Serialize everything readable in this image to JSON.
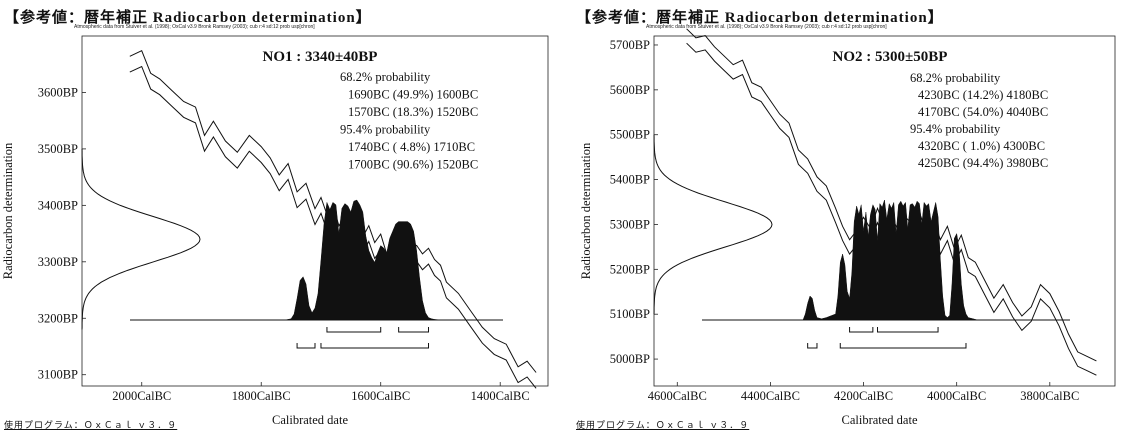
{
  "chart_data": [
    {
      "type": "line",
      "header": "【参考値：暦年補正 Radiocarbon determination】",
      "source_note": "Atmospheric data from Stuiver et al. (1998); OxCal v3.9 Bronk Ramsey (2003); cub r:4 sd:12 prob usp[chron]",
      "program": "使用プログラム：ＯｘＣａｌ ｖ３．９",
      "title": "NO1 : 3340±40BP",
      "ylabel": "Radiocarbon determination",
      "xlabel": "Calibrated date",
      "xlim": [
        -2100,
        -1320
      ],
      "ylim": [
        3080,
        3700
      ],
      "x_ticks": [
        -2000,
        -1800,
        -1600,
        -1400
      ],
      "x_tick_labels": [
        "2000CalBC",
        "1800CalBC",
        "1600CalBC",
        "1400CalBC"
      ],
      "y_ticks": [
        3600,
        3500,
        3400,
        3300,
        3200,
        3100
      ],
      "y_tick_labels": [
        "3600BP",
        "3500BP",
        "3400BP",
        "3300BP",
        "3200BP",
        "3100BP"
      ],
      "measurement": {
        "mean": 3340,
        "sd": 40
      },
      "ranges_text": [
        "68.2% probability",
        "1690BC (49.9%) 1600BC",
        "1570BC (18.3%) 1520BC",
        "95.4% probability",
        "1740BC ( 4.8%) 1710BC",
        "1700BC (90.6%) 1520BC"
      ],
      "ranges_68": [
        [
          -1690,
          -1600
        ],
        [
          -1570,
          -1520
        ]
      ],
      "ranges_95": [
        [
          -1740,
          -1710
        ],
        [
          -1700,
          -1520
        ]
      ],
      "calibration_curve": {
        "x": [
          -2020,
          -2000,
          -1985,
          -1970,
          -1950,
          -1930,
          -1910,
          -1895,
          -1880,
          -1860,
          -1840,
          -1820,
          -1800,
          -1785,
          -1770,
          -1755,
          -1740,
          -1725,
          -1710,
          -1700,
          -1690,
          -1680,
          -1670,
          -1660,
          -1650,
          -1640,
          -1630,
          -1620,
          -1610,
          -1600,
          -1590,
          -1580,
          -1570,
          -1560,
          -1550,
          -1540,
          -1530,
          -1520,
          -1510,
          -1500,
          -1490,
          -1470,
          -1450,
          -1430,
          -1410,
          -1390,
          -1370,
          -1355,
          -1340
        ],
        "y": [
          3650,
          3660,
          3620,
          3610,
          3590,
          3570,
          3560,
          3510,
          3535,
          3500,
          3480,
          3510,
          3490,
          3470,
          3440,
          3460,
          3410,
          3425,
          3380,
          3400,
          3370,
          3385,
          3350,
          3365,
          3345,
          3360,
          3330,
          3350,
          3320,
          3335,
          3300,
          3315,
          3305,
          3320,
          3310,
          3315,
          3300,
          3310,
          3290,
          3280,
          3250,
          3230,
          3200,
          3170,
          3150,
          3140,
          3100,
          3110,
          3090
        ],
        "sigma": 14
      },
      "posterior": {
        "x": [
          -1760,
          -1750,
          -1745,
          -1740,
          -1735,
          -1730,
          -1725,
          -1720,
          -1715,
          -1710,
          -1705,
          -1700,
          -1695,
          -1690,
          -1685,
          -1680,
          -1675,
          -1670,
          -1665,
          -1660,
          -1655,
          -1650,
          -1645,
          -1640,
          -1635,
          -1630,
          -1625,
          -1620,
          -1615,
          -1610,
          -1605,
          -1600,
          -1595,
          -1590,
          -1585,
          -1580,
          -1575,
          -1570,
          -1565,
          -1560,
          -1555,
          -1550,
          -1545,
          -1540,
          -1535,
          -1530,
          -1525,
          -1520,
          -1515,
          -1510,
          -1500
        ],
        "y": [
          0,
          0.01,
          0.05,
          0.18,
          0.33,
          0.36,
          0.3,
          0.12,
          0.06,
          0.1,
          0.22,
          0.5,
          0.8,
          0.98,
          0.92,
          0.98,
          0.96,
          0.72,
          0.93,
          0.97,
          0.95,
          0.9,
          0.99,
          1.0,
          0.96,
          0.9,
          0.7,
          0.58,
          0.52,
          0.48,
          0.56,
          0.62,
          0.6,
          0.56,
          0.68,
          0.74,
          0.8,
          0.82,
          0.82,
          0.82,
          0.82,
          0.8,
          0.74,
          0.58,
          0.35,
          0.16,
          0.06,
          0.02,
          0.01,
          0.005,
          0
        ]
      }
    },
    {
      "type": "line",
      "header": "【参考値：暦年補正 Radiocarbon determination】",
      "source_note": "Atmospheric data from Stuiver et al. (1998); OxCal v3.9 Bronk Ramsey (2003); cub r:4 sd:12 prob usp[chron]",
      "program": "使用プログラム：ＯｘＣａｌ ｖ３．９",
      "title": "NO2 : 5300±50BP",
      "ylabel": "Radiocarbon determination",
      "xlabel": "Calibrated date",
      "xlim": [
        -4650,
        -3660
      ],
      "ylim": [
        4940,
        5720
      ],
      "x_ticks": [
        -4600,
        -4400,
        -4200,
        -4000,
        -3800
      ],
      "x_tick_labels": [
        "4600CalBC",
        "4400CalBC",
        "4200CalBC",
        "4000CalBC",
        "3800CalBC"
      ],
      "y_ticks": [
        5700,
        5600,
        5500,
        5400,
        5300,
        5200,
        5100,
        5000
      ],
      "y_tick_labels": [
        "5700BP",
        "5600BP",
        "5500BP",
        "5400BP",
        "5300BP",
        "5200BP",
        "5100BP",
        "5000BP"
      ],
      "measurement": {
        "mean": 5300,
        "sd": 50
      },
      "ranges_text": [
        "68.2% probability",
        "4230BC (14.2%) 4180BC",
        "4170BC (54.0%) 4040BC",
        "95.4% probability",
        "4320BC ( 1.0%) 4300BC",
        "4250BC (94.4%) 3980BC"
      ],
      "ranges_68": [
        [
          -4230,
          -4180
        ],
        [
          -4170,
          -4040
        ]
      ],
      "ranges_95": [
        [
          -4320,
          -4300
        ],
        [
          -4250,
          -3980
        ]
      ],
      "calibration_curve": {
        "x": [
          -4580,
          -4560,
          -4540,
          -4520,
          -4500,
          -4480,
          -4460,
          -4440,
          -4420,
          -4400,
          -4380,
          -4360,
          -4340,
          -4320,
          -4300,
          -4280,
          -4260,
          -4245,
          -4230,
          -4215,
          -4200,
          -4185,
          -4170,
          -4155,
          -4140,
          -4125,
          -4110,
          -4095,
          -4080,
          -4065,
          -4050,
          -4035,
          -4020,
          -4005,
          -3990,
          -3975,
          -3960,
          -3940,
          -3920,
          -3900,
          -3880,
          -3860,
          -3840,
          -3820,
          -3800,
          -3780,
          -3760,
          -3740,
          -3720,
          -3700
        ],
        "y": [
          5720,
          5700,
          5705,
          5680,
          5660,
          5640,
          5650,
          5600,
          5590,
          5560,
          5530,
          5510,
          5450,
          5430,
          5390,
          5370,
          5320,
          5280,
          5250,
          5270,
          5300,
          5275,
          5320,
          5280,
          5300,
          5270,
          5300,
          5285,
          5310,
          5270,
          5295,
          5250,
          5280,
          5230,
          5260,
          5210,
          5200,
          5160,
          5120,
          5150,
          5110,
          5080,
          5100,
          5150,
          5130,
          5090,
          5040,
          5000,
          4990,
          4980
        ],
        "sigma": 16
      },
      "posterior": {
        "x": [
          -4330,
          -4325,
          -4320,
          -4315,
          -4310,
          -4305,
          -4300,
          -4290,
          -4280,
          -4260,
          -4255,
          -4250,
          -4245,
          -4240,
          -4235,
          -4230,
          -4225,
          -4220,
          -4215,
          -4210,
          -4205,
          -4200,
          -4195,
          -4190,
          -4185,
          -4180,
          -4175,
          -4170,
          -4165,
          -4160,
          -4155,
          -4150,
          -4145,
          -4140,
          -4135,
          -4130,
          -4125,
          -4120,
          -4115,
          -4110,
          -4105,
          -4100,
          -4095,
          -4090,
          -4085,
          -4080,
          -4075,
          -4070,
          -4065,
          -4060,
          -4055,
          -4050,
          -4045,
          -4040,
          -4035,
          -4030,
          -4025,
          -4020,
          -4015,
          -4010,
          -4005,
          -4000,
          -3995,
          -3990,
          -3985,
          -3980,
          -3975,
          -3965,
          -3955
        ],
        "y": [
          0,
          0.05,
          0.14,
          0.2,
          0.18,
          0.08,
          0.02,
          0.01,
          0.02,
          0.05,
          0.2,
          0.48,
          0.55,
          0.46,
          0.24,
          0.18,
          0.4,
          0.82,
          0.95,
          0.88,
          0.96,
          0.74,
          0.9,
          0.7,
          0.88,
          0.96,
          0.92,
          0.66,
          0.97,
          0.94,
          1.0,
          0.84,
          0.97,
          0.93,
          0.98,
          0.72,
          0.96,
          0.99,
          0.95,
          0.98,
          0.76,
          0.96,
          0.97,
          0.94,
          0.99,
          0.97,
          0.8,
          0.98,
          0.95,
          0.97,
          0.82,
          0.9,
          0.98,
          0.86,
          0.5,
          0.2,
          0.04,
          0.02,
          0.04,
          0.3,
          0.68,
          0.72,
          0.6,
          0.3,
          0.12,
          0.05,
          0.02,
          0.01,
          0
        ]
      }
    }
  ]
}
